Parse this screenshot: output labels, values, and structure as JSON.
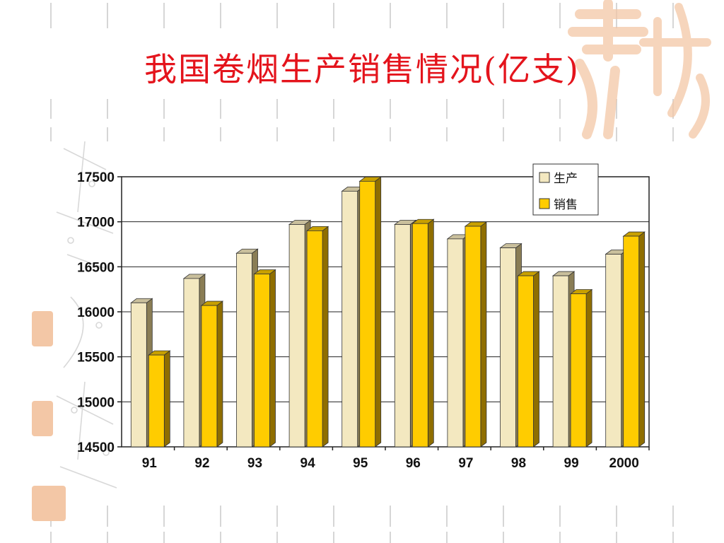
{
  "slide": {
    "title": "我国卷烟生产销售情况(亿支)"
  },
  "colors": {
    "title": "#e4141c",
    "production": "#f3e8c0",
    "sales": "#ffcc00",
    "decoration": "#f3c7a6"
  },
  "chart_data": {
    "type": "bar",
    "categories": [
      "91",
      "92",
      "93",
      "94",
      "95",
      "96",
      "97",
      "98",
      "99",
      "2000"
    ],
    "series": [
      {
        "name": "生产",
        "values": [
          16100,
          16370,
          16650,
          16970,
          17340,
          16970,
          16810,
          16710,
          16400,
          16640
        ]
      },
      {
        "name": "销售",
        "values": [
          15520,
          16070,
          16420,
          16900,
          17450,
          16980,
          16950,
          16400,
          16200,
          16840
        ]
      }
    ],
    "title": "",
    "xlabel": "",
    "ylabel": "",
    "ylim": [
      14500,
      17500
    ],
    "yticks": [
      "14500",
      "15000",
      "15500",
      "16000",
      "16500",
      "17000",
      "17500"
    ],
    "grid": true,
    "legend_position": "top-right",
    "style": "3d-clustered-column"
  }
}
